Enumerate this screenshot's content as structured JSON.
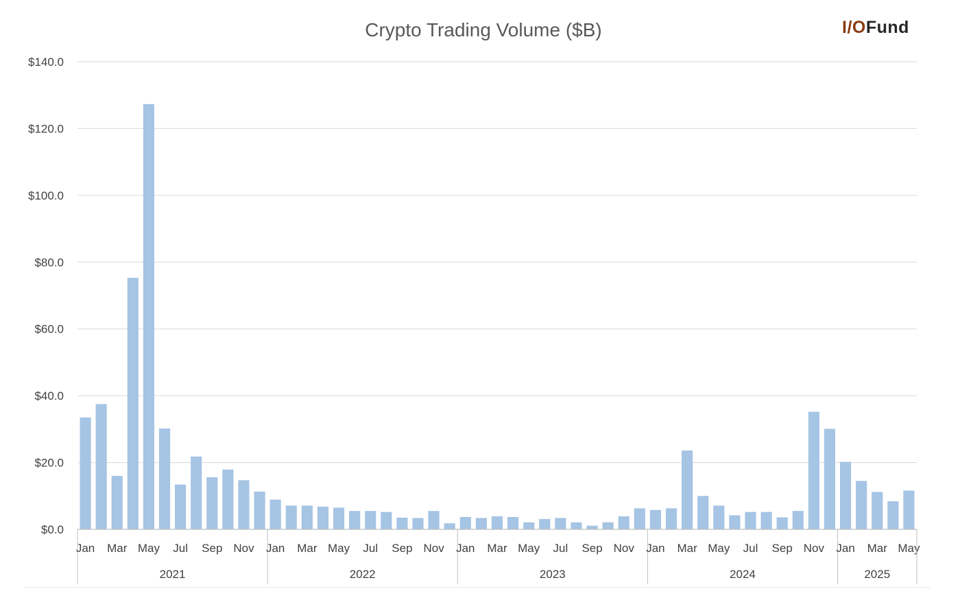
{
  "chart_data": {
    "type": "bar",
    "title": "Crypto Trading Volume ($B)",
    "brand": {
      "prefix": "I/O",
      "suffix": "Fund"
    },
    "colors": {
      "bar": "#a6c4e4",
      "grid": "#d9d9d9",
      "axis": "#bfbfbf",
      "brand_accent": "#8a3b12"
    },
    "ylim": [
      0,
      140
    ],
    "y_ticks": [
      "$0.0",
      "$20.0",
      "$40.0",
      "$60.0",
      "$80.0",
      "$100.0",
      "$120.0",
      "$140.0"
    ],
    "grid": true,
    "years": [
      {
        "label": "2021",
        "months": 12
      },
      {
        "label": "2022",
        "months": 12
      },
      {
        "label": "2023",
        "months": 12
      },
      {
        "label": "2024",
        "months": 12
      },
      {
        "label": "2025",
        "months": 5
      }
    ],
    "month_labels": [
      "Jan",
      "",
      "Mar",
      "",
      "May",
      "",
      "Jul",
      "",
      "Sep",
      "",
      "Nov",
      ""
    ],
    "values": [
      33.5,
      37.5,
      16.0,
      75.3,
      127.3,
      30.2,
      13.4,
      21.8,
      15.6,
      17.9,
      14.7,
      11.3,
      8.9,
      7.1,
      7.1,
      6.8,
      6.5,
      5.5,
      5.5,
      5.2,
      3.5,
      3.4,
      5.5,
      1.8,
      3.7,
      3.4,
      3.9,
      3.7,
      2.1,
      3.1,
      3.4,
      2.1,
      1.1,
      2.1,
      3.9,
      6.3,
      5.8,
      6.3,
      23.6,
      10.0,
      7.1,
      4.2,
      5.2,
      5.2,
      3.6,
      5.5,
      35.2,
      30.1,
      20.2,
      14.5,
      11.2,
      8.4,
      11.6
    ]
  }
}
